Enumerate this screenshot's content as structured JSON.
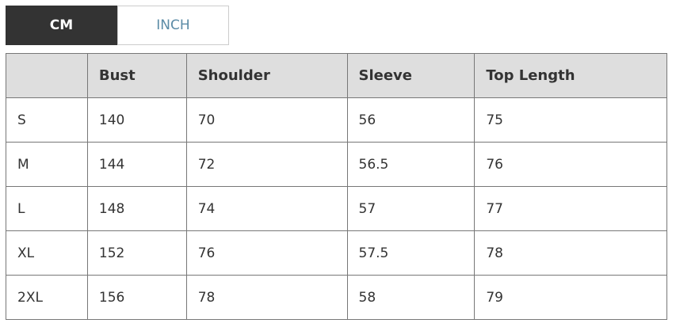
{
  "unit_tabs": [
    {
      "label": "CM",
      "active": true
    },
    {
      "label": "INCH",
      "active": false
    }
  ],
  "table": {
    "headers": [
      "",
      "Bust",
      "Shoulder",
      "Sleeve",
      "Top Length"
    ],
    "rows": [
      [
        "S",
        "140",
        "70",
        "56",
        "75"
      ],
      [
        "M",
        "144",
        "72",
        "56.5",
        "76"
      ],
      [
        "L",
        "148",
        "74",
        "57",
        "77"
      ],
      [
        "XL",
        "152",
        "76",
        "57.5",
        "78"
      ],
      [
        "2XL",
        "156",
        "78",
        "58",
        "79"
      ]
    ]
  },
  "colors": {
    "active_tab": "#333333",
    "inactive_tab_text": "#5b8ba6",
    "header_bg": "#dedede"
  }
}
